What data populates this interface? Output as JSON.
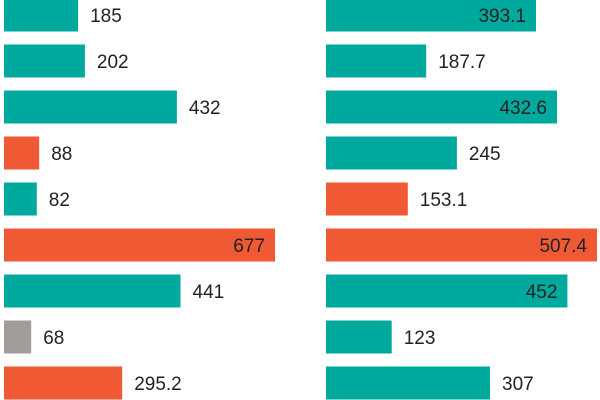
{
  "colors": {
    "teal": "#00a99d",
    "orange": "#ef5a35",
    "gray": "#a19d9a",
    "label": "#222222"
  },
  "chart_data": [
    {
      "type": "bar",
      "orientation": "horizontal",
      "title": "",
      "xlabel": "",
      "ylabel": "",
      "grid": false,
      "legend": "none",
      "values": [
        185,
        202,
        432,
        88,
        82,
        677,
        441,
        68,
        295.2
      ],
      "labels": [
        "185",
        "202",
        "432",
        "88",
        "82",
        "677",
        "441",
        "68",
        "295.2"
      ],
      "bar_colors": [
        "teal",
        "teal",
        "teal",
        "orange",
        "teal",
        "orange",
        "teal",
        "gray",
        "orange"
      ],
      "label_inside": [
        false,
        false,
        false,
        false,
        false,
        true,
        false,
        false,
        false
      ],
      "xlim": [
        0,
        677
      ]
    },
    {
      "type": "bar",
      "orientation": "horizontal",
      "title": "",
      "xlabel": "",
      "ylabel": "",
      "grid": false,
      "legend": "none",
      "values": [
        393.1,
        187.7,
        432.6,
        245,
        153.1,
        507.4,
        452,
        123,
        307
      ],
      "labels": [
        "393.1",
        "187.7",
        "432.6",
        "245",
        "153.1",
        "507.4",
        "452",
        "123",
        "307"
      ],
      "bar_colors": [
        "teal",
        "teal",
        "teal",
        "teal",
        "orange",
        "orange",
        "teal",
        "teal",
        "teal"
      ],
      "label_inside": [
        true,
        false,
        true,
        false,
        false,
        true,
        true,
        false,
        false
      ],
      "xlim": [
        0,
        507.4
      ]
    }
  ]
}
